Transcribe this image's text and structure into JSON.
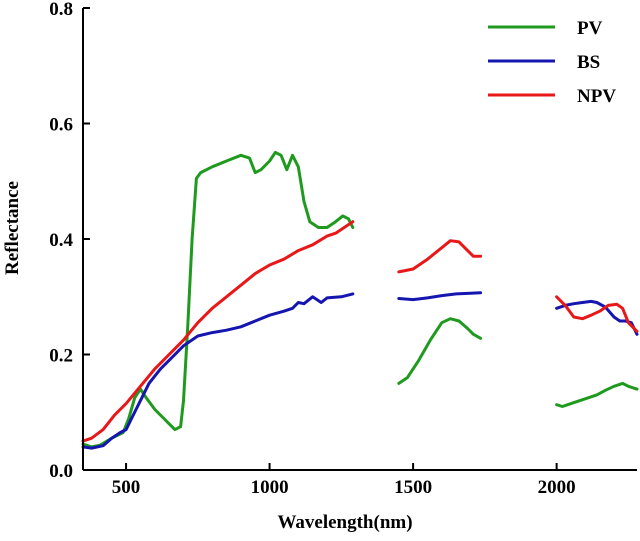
{
  "chart_data": {
    "type": "line",
    "xlabel": "Wavelength(nm)",
    "ylabel": "Reflectance",
    "xlim": [
      350,
      2280
    ],
    "ylim": [
      0.0,
      0.8
    ],
    "xticks": [
      500,
      1000,
      1500,
      2000
    ],
    "xtick_labels": [
      "500",
      "1000",
      "1500",
      "2000"
    ],
    "yticks": [
      0.0,
      0.2,
      0.4,
      0.6,
      0.8
    ],
    "ytick_labels": [
      "0.0",
      "0.2",
      "0.4",
      "0.6",
      "0.8"
    ],
    "grid": false,
    "legend_position": "top-right",
    "series": [
      {
        "name": "PV",
        "color": "#1f9a1f",
        "segments": [
          [
            [
              350,
              0.045
            ],
            [
              380,
              0.04
            ],
            [
              410,
              0.043
            ],
            [
              450,
              0.055
            ],
            [
              490,
              0.065
            ],
            [
              510,
              0.09
            ],
            [
              530,
              0.125
            ],
            [
              550,
              0.14
            ],
            [
              570,
              0.125
            ],
            [
              600,
              0.105
            ],
            [
              630,
              0.09
            ],
            [
              650,
              0.08
            ],
            [
              670,
              0.07
            ],
            [
              690,
              0.075
            ],
            [
              700,
              0.12
            ],
            [
              715,
              0.25
            ],
            [
              730,
              0.4
            ],
            [
              745,
              0.505
            ],
            [
              760,
              0.515
            ],
            [
              800,
              0.525
            ],
            [
              850,
              0.535
            ],
            [
              900,
              0.545
            ],
            [
              930,
              0.54
            ],
            [
              950,
              0.515
            ],
            [
              970,
              0.52
            ],
            [
              1000,
              0.535
            ],
            [
              1020,
              0.55
            ],
            [
              1040,
              0.545
            ],
            [
              1060,
              0.52
            ],
            [
              1080,
              0.545
            ],
            [
              1100,
              0.525
            ],
            [
              1120,
              0.465
            ],
            [
              1140,
              0.43
            ],
            [
              1170,
              0.42
            ],
            [
              1200,
              0.42
            ],
            [
              1230,
              0.43
            ],
            [
              1255,
              0.44
            ],
            [
              1275,
              0.435
            ],
            [
              1290,
              0.42
            ]
          ],
          [
            [
              1450,
              0.15
            ],
            [
              1480,
              0.16
            ],
            [
              1520,
              0.19
            ],
            [
              1560,
              0.225
            ],
            [
              1600,
              0.255
            ],
            [
              1630,
              0.262
            ],
            [
              1660,
              0.258
            ],
            [
              1690,
              0.245
            ],
            [
              1710,
              0.235
            ],
            [
              1735,
              0.228
            ]
          ],
          [
            [
              2000,
              0.113
            ],
            [
              2020,
              0.11
            ],
            [
              2050,
              0.115
            ],
            [
              2080,
              0.12
            ],
            [
              2110,
              0.125
            ],
            [
              2140,
              0.13
            ],
            [
              2170,
              0.138
            ],
            [
              2200,
              0.145
            ],
            [
              2230,
              0.15
            ],
            [
              2250,
              0.145
            ],
            [
              2280,
              0.14
            ]
          ]
        ]
      },
      {
        "name": "BS",
        "color": "#1515b0",
        "segments": [
          [
            [
              350,
              0.04
            ],
            [
              380,
              0.038
            ],
            [
              420,
              0.042
            ],
            [
              450,
              0.055
            ],
            [
              480,
              0.065
            ],
            [
              500,
              0.07
            ],
            [
              520,
              0.09
            ],
            [
              550,
              0.12
            ],
            [
              580,
              0.15
            ],
            [
              620,
              0.175
            ],
            [
              660,
              0.195
            ],
            [
              700,
              0.215
            ],
            [
              750,
              0.232
            ],
            [
              800,
              0.238
            ],
            [
              850,
              0.242
            ],
            [
              900,
              0.248
            ],
            [
              950,
              0.258
            ],
            [
              1000,
              0.268
            ],
            [
              1050,
              0.275
            ],
            [
              1080,
              0.28
            ],
            [
              1100,
              0.29
            ],
            [
              1120,
              0.288
            ],
            [
              1150,
              0.3
            ],
            [
              1180,
              0.29
            ],
            [
              1200,
              0.298
            ],
            [
              1250,
              0.3
            ],
            [
              1290,
              0.305
            ]
          ],
          [
            [
              1450,
              0.297
            ],
            [
              1500,
              0.295
            ],
            [
              1550,
              0.298
            ],
            [
              1600,
              0.302
            ],
            [
              1650,
              0.305
            ],
            [
              1700,
              0.306
            ],
            [
              1735,
              0.307
            ]
          ],
          [
            [
              2000,
              0.28
            ],
            [
              2030,
              0.285
            ],
            [
              2060,
              0.288
            ],
            [
              2090,
              0.29
            ],
            [
              2120,
              0.292
            ],
            [
              2140,
              0.29
            ],
            [
              2170,
              0.282
            ],
            [
              2200,
              0.265
            ],
            [
              2220,
              0.258
            ],
            [
              2240,
              0.258
            ],
            [
              2260,
              0.255
            ],
            [
              2280,
              0.235
            ]
          ]
        ]
      },
      {
        "name": "NPV",
        "color": "#e81818",
        "segments": [
          [
            [
              350,
              0.05
            ],
            [
              380,
              0.055
            ],
            [
              420,
              0.07
            ],
            [
              460,
              0.095
            ],
            [
              500,
              0.115
            ],
            [
              550,
              0.145
            ],
            [
              600,
              0.175
            ],
            [
              650,
              0.2
            ],
            [
              700,
              0.225
            ],
            [
              750,
              0.255
            ],
            [
              800,
              0.28
            ],
            [
              850,
              0.3
            ],
            [
              900,
              0.32
            ],
            [
              950,
              0.34
            ],
            [
              1000,
              0.355
            ],
            [
              1050,
              0.365
            ],
            [
              1100,
              0.38
            ],
            [
              1150,
              0.39
            ],
            [
              1200,
              0.405
            ],
            [
              1230,
              0.41
            ],
            [
              1260,
              0.42
            ],
            [
              1290,
              0.43
            ]
          ],
          [
            [
              1450,
              0.343
            ],
            [
              1500,
              0.348
            ],
            [
              1550,
              0.365
            ],
            [
              1600,
              0.385
            ],
            [
              1630,
              0.397
            ],
            [
              1660,
              0.395
            ],
            [
              1690,
              0.38
            ],
            [
              1710,
              0.37
            ],
            [
              1735,
              0.37
            ]
          ],
          [
            [
              2000,
              0.3
            ],
            [
              2030,
              0.285
            ],
            [
              2060,
              0.265
            ],
            [
              2090,
              0.262
            ],
            [
              2120,
              0.268
            ],
            [
              2150,
              0.275
            ],
            [
              2180,
              0.285
            ],
            [
              2210,
              0.287
            ],
            [
              2230,
              0.28
            ],
            [
              2250,
              0.255
            ],
            [
              2280,
              0.24
            ]
          ]
        ]
      }
    ]
  }
}
